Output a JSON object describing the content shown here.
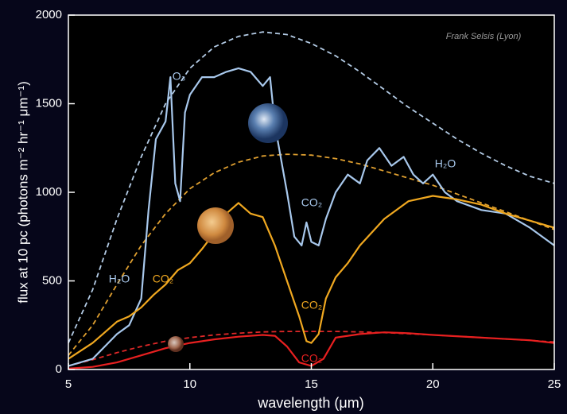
{
  "chart_data": {
    "type": "line",
    "xlabel": "wavelength (μm)",
    "ylabel": "flux at 10 pc (photons m⁻² hr⁻¹ μm⁻¹)",
    "xlim": [
      5,
      25
    ],
    "xticks": [
      5,
      10,
      15,
      20,
      25
    ],
    "ylim": [
      0,
      2000
    ],
    "yticks": [
      0,
      500,
      1000,
      1500,
      2000
    ],
    "series": [
      {
        "color": "#b4cce6",
        "dashed": true,
        "x": [
          5,
          6,
          7,
          8,
          9,
          10,
          11,
          12,
          13,
          14,
          15,
          16,
          17,
          18,
          19,
          20,
          21,
          22,
          23,
          24,
          25
        ],
        "values": [
          150,
          450,
          850,
          1200,
          1500,
          1700,
          1820,
          1880,
          1905,
          1890,
          1840,
          1770,
          1680,
          1580,
          1480,
          1390,
          1300,
          1220,
          1150,
          1090,
          1050
        ]
      },
      {
        "color": "#e0a030",
        "dashed": true,
        "x": [
          5,
          6,
          7,
          8,
          9,
          10,
          11,
          12,
          13,
          14,
          15,
          16,
          17,
          18,
          19,
          20,
          21,
          22,
          23,
          24,
          25
        ],
        "values": [
          80,
          250,
          480,
          700,
          880,
          1020,
          1110,
          1170,
          1205,
          1215,
          1210,
          1190,
          1160,
          1120,
          1080,
          1040,
          990,
          940,
          890,
          840,
          790
        ]
      },
      {
        "color": "#e02828",
        "dashed": true,
        "x": [
          5,
          6,
          7,
          8,
          9,
          10,
          11,
          12,
          13,
          14,
          15,
          16,
          17,
          18,
          19,
          20,
          21,
          22,
          23,
          24,
          25
        ],
        "values": [
          20,
          55,
          95,
          130,
          160,
          180,
          195,
          205,
          212,
          215,
          215,
          215,
          212,
          208,
          202,
          195,
          188,
          180,
          172,
          164,
          155
        ]
      },
      {
        "color": "#a8c8ec",
        "dashed": false,
        "x": [
          5,
          6,
          7,
          7.5,
          8,
          8.3,
          8.6,
          9,
          9.2,
          9.4,
          9.6,
          9.8,
          10,
          10.5,
          11,
          11.5,
          12,
          12.5,
          13,
          13.3,
          13.5,
          14,
          14.3,
          14.6,
          14.8,
          15,
          15.3,
          15.6,
          16,
          16.5,
          17,
          17.3,
          17.8,
          18.3,
          18.8,
          19.2,
          19.6,
          20,
          20.5,
          21,
          22,
          23,
          24,
          25
        ],
        "values": [
          20,
          60,
          200,
          250,
          400,
          900,
          1300,
          1400,
          1650,
          1050,
          950,
          1450,
          1550,
          1650,
          1650,
          1680,
          1700,
          1680,
          1600,
          1650,
          1380,
          1000,
          750,
          700,
          830,
          720,
          700,
          850,
          1000,
          1100,
          1050,
          1180,
          1250,
          1150,
          1200,
          1100,
          1050,
          1100,
          1000,
          950,
          900,
          880,
          800,
          700
        ]
      },
      {
        "color": "#f0a820",
        "dashed": false,
        "x": [
          5,
          6,
          7,
          7.5,
          8,
          8.5,
          9,
          9.5,
          10,
          10.5,
          11,
          11.5,
          12,
          12.5,
          13,
          13.5,
          14,
          14.5,
          14.8,
          15,
          15.3,
          15.6,
          16,
          16.5,
          17,
          18,
          19,
          20,
          21,
          22,
          23,
          24,
          25
        ],
        "values": [
          60,
          150,
          270,
          300,
          350,
          420,
          480,
          560,
          600,
          680,
          770,
          880,
          940,
          880,
          860,
          700,
          500,
          300,
          160,
          150,
          200,
          400,
          520,
          600,
          700,
          850,
          950,
          980,
          960,
          930,
          880,
          840,
          800
        ]
      },
      {
        "color": "#e82020",
        "dashed": false,
        "x": [
          5,
          6,
          7,
          8,
          9,
          10,
          11,
          12,
          13,
          13.5,
          14,
          14.5,
          15,
          15.5,
          16,
          17,
          18,
          19,
          20,
          22,
          24,
          25
        ],
        "values": [
          5,
          15,
          40,
          80,
          120,
          150,
          170,
          185,
          195,
          190,
          130,
          40,
          20,
          60,
          180,
          200,
          210,
          205,
          195,
          180,
          165,
          150
        ]
      }
    ],
    "annotations": [
      {
        "text": "Frank Selsis (Lyon)",
        "color": "#9a9a9a"
      },
      {
        "text": "O₃",
        "color": "#a8c8ec"
      },
      {
        "text": "H₂O",
        "color": "#a8c8ec"
      },
      {
        "text": "CO₂",
        "color": "#a8c8ec"
      },
      {
        "text": "H₂O",
        "color": "#a8c8ec"
      },
      {
        "text": "CO₂",
        "color": "#f0a820"
      },
      {
        "text": "CO₂",
        "color": "#f0a820"
      },
      {
        "text": "CO₂",
        "color": "#e82020"
      }
    ]
  }
}
